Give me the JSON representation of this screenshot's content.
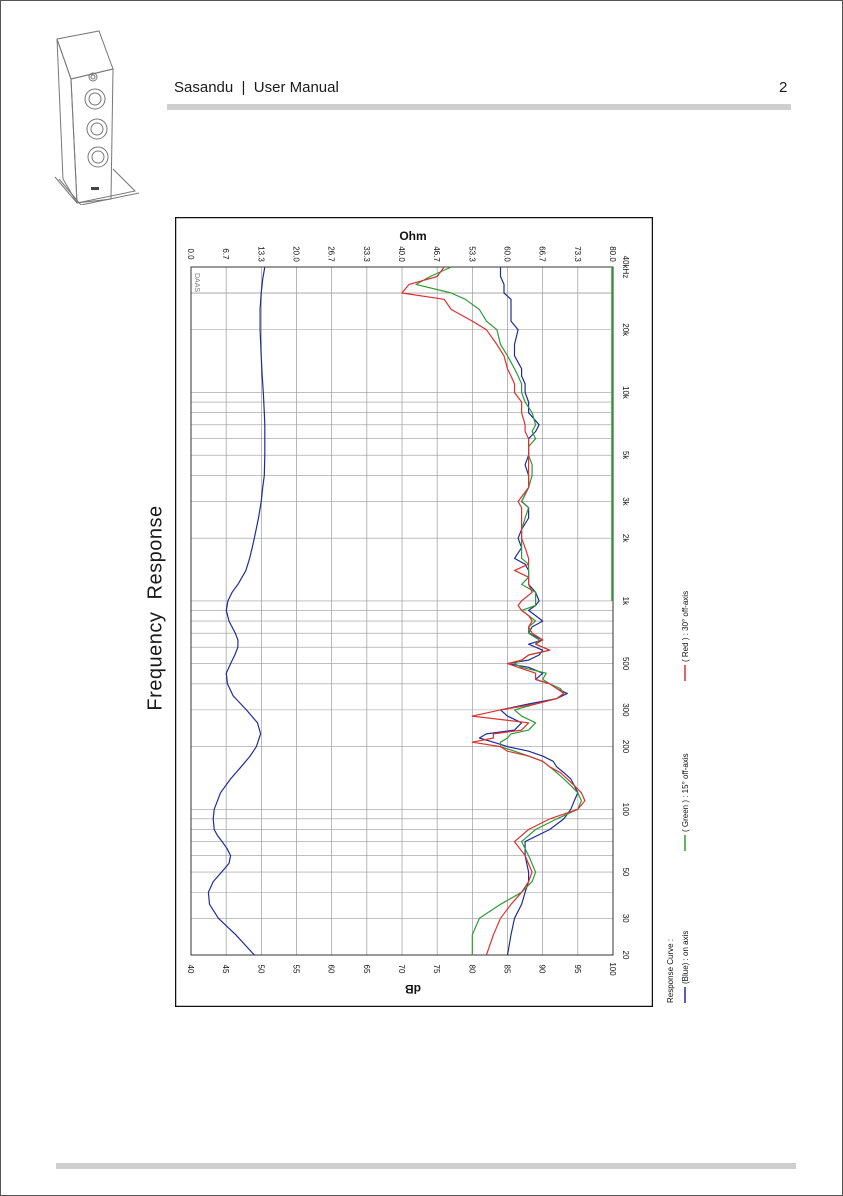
{
  "header": {
    "title": "Sasandu  |  User Manual",
    "page_number": "2"
  },
  "section_title": "Frequency  Response",
  "colors": {
    "blue": "#1f2d9a",
    "green": "#2f9a35",
    "red": "#e03030",
    "grid": "#9a9a9a",
    "impedance_band": "#2fae3a"
  },
  "chart_data": {
    "type": "line",
    "x_scale": "log",
    "x_range": [
      20,
      40000
    ],
    "x_ticks": [
      20,
      30,
      50,
      100,
      200,
      300,
      500,
      1000,
      2000,
      3000,
      5000,
      10000,
      20000,
      40000
    ],
    "x_tick_labels": [
      "20",
      "30",
      "50",
      "100",
      "200",
      "300",
      "500",
      "1k",
      "2k",
      "3k",
      "5k",
      "10k",
      "20k",
      "40kHz"
    ],
    "ylabel": "dB",
    "ylim": [
      40,
      100
    ],
    "y_ticks": [
      40,
      45,
      50,
      55,
      60,
      65,
      70,
      75,
      80,
      85,
      90,
      95,
      100
    ],
    "y2label": "Ohm",
    "y2lim": [
      0,
      80
    ],
    "y2_tick_labels": [
      "0.0",
      "6.7",
      "13.3",
      "20.0",
      "26.7",
      "33.3",
      "40.0",
      "46.7",
      "53.3",
      "60.0",
      "66.7",
      "73.3",
      "80.0"
    ],
    "watermark": "DAAS",
    "grid": true,
    "legend": {
      "heading": "Response Curve :",
      "items": [
        "(Blue) : on axis",
        "( Green ) : 15° off-axis",
        "( Red ) : 30° off-axis"
      ]
    },
    "series": [
      {
        "name": "(Blue) : on axis",
        "color": "#1f2d9a",
        "x": [
          20,
          25,
          30,
          35,
          40,
          45,
          50,
          60,
          70,
          80,
          90,
          100,
          110,
          120,
          130,
          140,
          150,
          160,
          170,
          180,
          190,
          200,
          210,
          220,
          230,
          240,
          260,
          280,
          300,
          320,
          340,
          360,
          380,
          400,
          420,
          450,
          480,
          500,
          520,
          550,
          580,
          620,
          650,
          700,
          750,
          800,
          850,
          900,
          950,
          1000,
          1100,
          1200,
          1300,
          1400,
          1500,
          1600,
          1800,
          2000,
          2200,
          2500,
          2800,
          3000,
          3500,
          4000,
          4500,
          5000,
          5500,
          6000,
          6500,
          7000,
          8000,
          9000,
          10000,
          11000,
          12000,
          13000,
          15000,
          17000,
          20000,
          22000,
          25000,
          28000,
          30000,
          33000,
          36000,
          40000
        ],
        "y": [
          85,
          85.5,
          86,
          87,
          87.5,
          88,
          88,
          87.5,
          87.5,
          91,
          93,
          94,
          94.5,
          95,
          94.5,
          94,
          93,
          92,
          91.5,
          90,
          88,
          85,
          83,
          81,
          82,
          86,
          87,
          85,
          84,
          88,
          92,
          93.5,
          92,
          91,
          89,
          90,
          88,
          85,
          88,
          89.5,
          90,
          88,
          90,
          88,
          88.5,
          90,
          89,
          88,
          89,
          89.5,
          89,
          88,
          88,
          88,
          87.5,
          86,
          87,
          86.5,
          87,
          88,
          88,
          87,
          88,
          88,
          87.5,
          88,
          88,
          88,
          89,
          89.5,
          88,
          88,
          87.5,
          87.5,
          87,
          87,
          86,
          86,
          86.5,
          85.5,
          85.5,
          85.5,
          84.5,
          84.5,
          84,
          84
        ]
      },
      {
        "name": "( Green ) : 15° off-axis",
        "color": "#2f9a35",
        "x": [
          20,
          25,
          30,
          35,
          40,
          45,
          50,
          60,
          70,
          80,
          90,
          100,
          110,
          120,
          130,
          140,
          150,
          160,
          170,
          180,
          190,
          200,
          210,
          220,
          230,
          240,
          260,
          280,
          300,
          320,
          340,
          360,
          380,
          400,
          420,
          450,
          480,
          500,
          520,
          550,
          580,
          620,
          650,
          700,
          750,
          800,
          850,
          900,
          950,
          1000,
          1100,
          1200,
          1300,
          1400,
          1500,
          1600,
          1800,
          2000,
          2200,
          2500,
          2800,
          3000,
          3500,
          4000,
          4500,
          5000,
          5500,
          6000,
          6500,
          7000,
          8000,
          9000,
          10000,
          11000,
          12000,
          13000,
          15000,
          17000,
          20000,
          22000,
          25000,
          28000,
          30000,
          33000,
          36000,
          40000
        ],
        "y": [
          80,
          80,
          81,
          84,
          87,
          88.5,
          89,
          88,
          87,
          89,
          92,
          95,
          95.5,
          95,
          94,
          93,
          92,
          91,
          90,
          88,
          86,
          84,
          84,
          85,
          85.5,
          88,
          89,
          87,
          86,
          89,
          92,
          93,
          92.5,
          91,
          90,
          90.5,
          87,
          86,
          87,
          88,
          91,
          89,
          89.5,
          88,
          88,
          89,
          88,
          87,
          89,
          89,
          89,
          87,
          88,
          88,
          88,
          87,
          87,
          87,
          87,
          87.5,
          88,
          87,
          88,
          88.5,
          88.5,
          88,
          88,
          89,
          88.5,
          89,
          88.5,
          87.5,
          87,
          87,
          86.5,
          86,
          85,
          84,
          83.5,
          82,
          81,
          79,
          77,
          72,
          74,
          77
        ]
      },
      {
        "name": "( Red ) : 30° off-axis",
        "color": "#e03030",
        "x": [
          20,
          25,
          30,
          35,
          40,
          45,
          50,
          60,
          70,
          80,
          90,
          100,
          110,
          120,
          130,
          140,
          150,
          160,
          170,
          180,
          190,
          200,
          210,
          220,
          230,
          240,
          260,
          280,
          300,
          320,
          340,
          360,
          380,
          400,
          420,
          450,
          480,
          500,
          520,
          550,
          580,
          620,
          650,
          700,
          750,
          800,
          850,
          900,
          950,
          1000,
          1100,
          1200,
          1300,
          1400,
          1500,
          1600,
          1800,
          2000,
          2200,
          2500,
          2800,
          3000,
          3500,
          4000,
          4500,
          5000,
          5500,
          6000,
          6500,
          7000,
          8000,
          9000,
          10000,
          11000,
          12000,
          13000,
          15000,
          17000,
          20000,
          22000,
          25000,
          28000,
          30000,
          33000,
          36000,
          40000
        ],
        "y": [
          82,
          83,
          84,
          85.5,
          87,
          88,
          88.5,
          87.5,
          86,
          88,
          91,
          95,
          96,
          95.5,
          94.5,
          93.5,
          92.5,
          91,
          90,
          88,
          85,
          84,
          80,
          83,
          83,
          87,
          88,
          80,
          84,
          89,
          92,
          93,
          92,
          91,
          89,
          89,
          86.5,
          85,
          87,
          88,
          91,
          89,
          90,
          88.5,
          88,
          88.5,
          88,
          87,
          86.5,
          87,
          88.5,
          88,
          88,
          86,
          88,
          88,
          87.5,
          87,
          87,
          87,
          87,
          86.5,
          88,
          88,
          88,
          88,
          88,
          88,
          87.5,
          87.5,
          87,
          87,
          86,
          86,
          85.5,
          85,
          84.5,
          83.5,
          82,
          80,
          77,
          76,
          70,
          71,
          75,
          76
        ]
      },
      {
        "name": "Impedance",
        "color": "#1f2d9a",
        "axis": "ohm",
        "x": [
          20,
          22,
          25,
          30,
          35,
          40,
          45,
          50,
          55,
          60,
          65,
          70,
          75,
          80,
          90,
          100,
          120,
          140,
          160,
          180,
          200,
          230,
          260,
          300,
          350,
          400,
          450,
          500,
          550,
          600,
          650,
          700,
          800,
          900,
          1000,
          1100,
          1200,
          1400,
          1600,
          1800,
          2000,
          2500,
          3000,
          3500,
          4000,
          5000,
          6000,
          7000,
          8000,
          10000,
          12000,
          15000,
          20000,
          25000,
          30000,
          35000,
          40000
        ],
        "y": [
          12,
          10.5,
          8.5,
          5.2,
          3.5,
          3.3,
          4.2,
          5.8,
          7.2,
          7.5,
          6.8,
          5.9,
          5.0,
          4.4,
          4.2,
          4.4,
          5.6,
          7.5,
          9.5,
          11.2,
          12.4,
          13.2,
          12.6,
          10.5,
          8.0,
          6.9,
          6.7,
          7.5,
          8.3,
          8.9,
          8.9,
          8.4,
          7.2,
          6.7,
          7.0,
          7.8,
          8.9,
          10.4,
          11.1,
          11.6,
          12.0,
          12.8,
          13.3,
          13.6,
          13.9,
          14.0,
          14.0,
          14.0,
          13.9,
          13.7,
          13.5,
          13.3,
          13.1,
          13.1,
          13.3,
          13.6,
          14.0
        ]
      }
    ]
  }
}
